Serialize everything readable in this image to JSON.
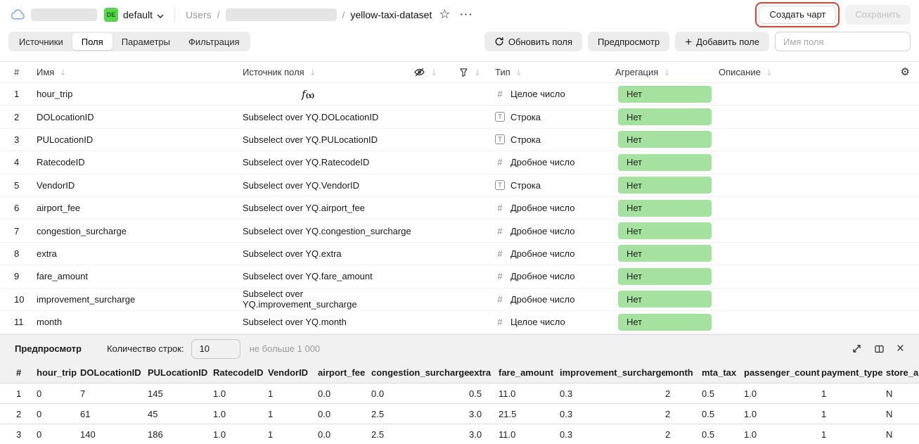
{
  "colors": {
    "aggregation_badge_green": "#a5e19f",
    "env_badge_green": "#58d54a",
    "annotation_red": "#e8402c",
    "cloud_blue": "#79a7ec"
  },
  "topbar": {
    "env_badge": "DE",
    "env_name": "default",
    "breadcrumb_root": "Users",
    "breadcrumb_sep": "/",
    "dataset_name": "yellow-taxi-dataset",
    "ellipsis": "···",
    "star": "☆",
    "create_chart_label": "Создать чарт",
    "save_label": "Сохранить"
  },
  "tabs": [
    {
      "label": "Источники",
      "active": false
    },
    {
      "label": "Поля",
      "active": true
    },
    {
      "label": "Параметры",
      "active": false
    },
    {
      "label": "Фильтрация",
      "active": false
    }
  ],
  "toolbar": {
    "refresh_label": "Обновить поля",
    "preview_label": "Предпросмотр",
    "add_field_plus": "+",
    "add_field_label": "Добавить поле",
    "name_input_placeholder": "Имя поля"
  },
  "fields_table": {
    "header": {
      "num": "#",
      "name": "Имя",
      "source": "Источник поля",
      "type": "Тип",
      "aggregation": "Агрегация",
      "description": "Описание",
      "sort_arrow": "↓",
      "settings_icon": "⚙"
    },
    "rows": [
      {
        "num": "1",
        "name": "hour_trip",
        "source": "",
        "is_formula": true,
        "type_kind": "integer",
        "type_label": "Целое число",
        "aggregation": "Нет"
      },
      {
        "num": "2",
        "name": "DOLocationID",
        "source": "Subselect over YQ.DOLocationID",
        "is_formula": false,
        "type_kind": "string",
        "type_label": "Строка",
        "aggregation": "Нет"
      },
      {
        "num": "3",
        "name": "PULocationID",
        "source": "Subselect over YQ.PULocationID",
        "is_formula": false,
        "type_kind": "string",
        "type_label": "Строка",
        "aggregation": "Нет"
      },
      {
        "num": "4",
        "name": "RatecodeID",
        "source": "Subselect over YQ.RatecodeID",
        "is_formula": false,
        "type_kind": "float",
        "type_label": "Дробное число",
        "aggregation": "Нет"
      },
      {
        "num": "5",
        "name": "VendorID",
        "source": "Subselect over YQ.VendorID",
        "is_formula": false,
        "type_kind": "string",
        "type_label": "Строка",
        "aggregation": "Нет"
      },
      {
        "num": "6",
        "name": "airport_fee",
        "source": "Subselect over YQ.airport_fee",
        "is_formula": false,
        "type_kind": "float",
        "type_label": "Дробное число",
        "aggregation": "Нет"
      },
      {
        "num": "7",
        "name": "congestion_surcharge",
        "source": "Subselect over YQ.congestion_surcharge",
        "is_formula": false,
        "type_kind": "float",
        "type_label": "Дробное число",
        "aggregation": "Нет"
      },
      {
        "num": "8",
        "name": "extra",
        "source": "Subselect over YQ.extra",
        "is_formula": false,
        "type_kind": "float",
        "type_label": "Дробное число",
        "aggregation": "Нет"
      },
      {
        "num": "9",
        "name": "fare_amount",
        "source": "Subselect over YQ.fare_amount",
        "is_formula": false,
        "type_kind": "float",
        "type_label": "Дробное число",
        "aggregation": "Нет"
      },
      {
        "num": "10",
        "name": "improvement_surcharge",
        "source": "Subselect over YQ.improvement_surcharge",
        "is_formula": false,
        "type_kind": "float",
        "type_label": "Дробное число",
        "aggregation": "Нет"
      },
      {
        "num": "11",
        "name": "month",
        "source": "Subselect over YQ.month",
        "is_formula": false,
        "type_kind": "integer",
        "type_label": "Целое число",
        "aggregation": "Нет"
      }
    ]
  },
  "preview": {
    "title": "Предпросмотр",
    "row_count_label": "Количество строк:",
    "row_count_value": "10",
    "row_count_hint": "не больше 1 000",
    "table": {
      "columns": [
        "#",
        "hour_trip",
        "DOLocationID",
        "PULocationID",
        "RatecodeID",
        "VendorID",
        "airport_fee",
        "congestion_surcharge",
        "extra",
        "fare_amount",
        "improvement_surcharge",
        "month",
        "mta_tax",
        "passenger_count",
        "payment_type",
        "store_an"
      ],
      "rows": [
        [
          "1",
          "0",
          "7",
          "145",
          "1.0",
          "1",
          "0.0",
          "0.0",
          "0.5",
          "11.0",
          "0.3",
          "2",
          "0.5",
          "1.0",
          "1",
          "N"
        ],
        [
          "2",
          "0",
          "61",
          "45",
          "1.0",
          "1",
          "0.0",
          "2.5",
          "3.0",
          "21.5",
          "0.3",
          "2",
          "0.5",
          "1.0",
          "1",
          "N"
        ],
        [
          "3",
          "0",
          "140",
          "186",
          "1.0",
          "1",
          "0.0",
          "2.5",
          "3.0",
          "11.0",
          "0.3",
          "2",
          "0.5",
          "1.0",
          "1",
          "N"
        ]
      ]
    }
  }
}
